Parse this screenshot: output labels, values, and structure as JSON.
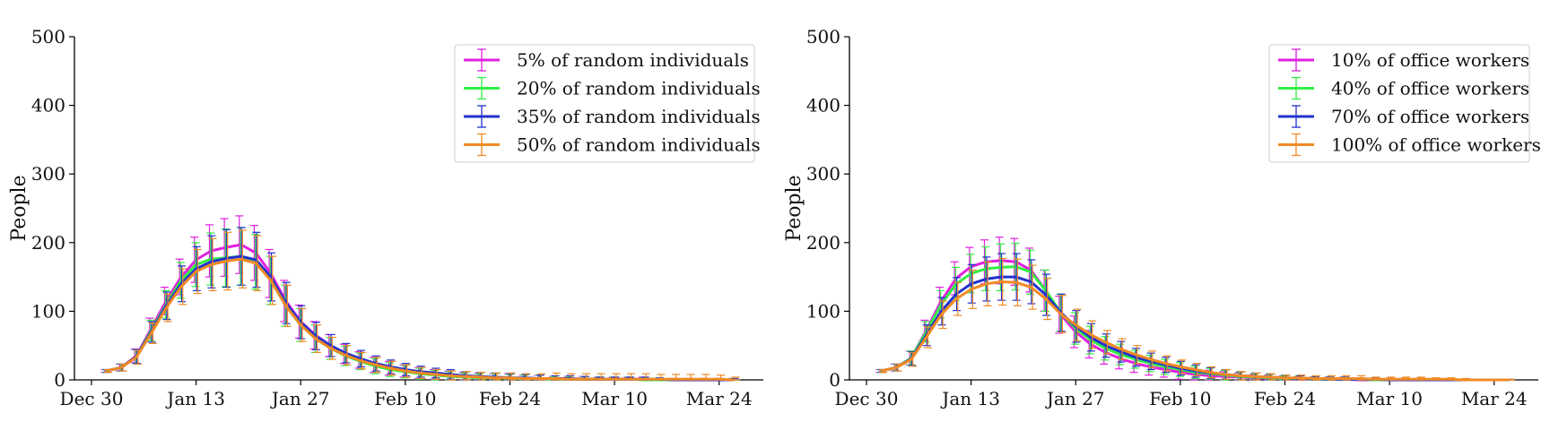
{
  "chart_data": [
    {
      "type": "line",
      "title": "",
      "xlabel": "",
      "ylabel": "People",
      "ylim": [
        0,
        500
      ],
      "yticks": [
        0,
        100,
        200,
        300,
        400,
        500
      ],
      "xticks": [
        "Dec 30",
        "Jan 13",
        "Jan 27",
        "Feb 10",
        "Feb 24",
        "Mar 10",
        "Mar 24"
      ],
      "xrange": [
        "Jan 1",
        "Mar 26"
      ],
      "legend_position": "top-right",
      "error_bars": true,
      "x": [
        "Jan 1",
        "Jan 3",
        "Jan 5",
        "Jan 7",
        "Jan 9",
        "Jan 11",
        "Jan 13",
        "Jan 15",
        "Jan 17",
        "Jan 19",
        "Jan 21",
        "Jan 23",
        "Jan 25",
        "Jan 27",
        "Jan 29",
        "Jan 31",
        "Feb 2",
        "Feb 4",
        "Feb 6",
        "Feb 8",
        "Feb 10",
        "Feb 12",
        "Feb 14",
        "Feb 16",
        "Feb 18",
        "Feb 20",
        "Feb 22",
        "Feb 24",
        "Feb 26",
        "Feb 28",
        "Mar 2",
        "Mar 4",
        "Mar 6",
        "Mar 8",
        "Mar 10",
        "Mar 12",
        "Mar 14",
        "Mar 16",
        "Mar 18",
        "Mar 20",
        "Mar 22",
        "Mar 24",
        "Mar 26"
      ],
      "series": [
        {
          "name": "5% of random individuals",
          "color": "#e020e0",
          "values": [
            13,
            18,
            35,
            75,
            115,
            150,
            175,
            188,
            193,
            197,
            185,
            155,
            115,
            85,
            65,
            50,
            38,
            29,
            22,
            17,
            13,
            10,
            8,
            6,
            5,
            4,
            3,
            3,
            2,
            2,
            1,
            1,
            1,
            1,
            1,
            1,
            1,
            0,
            0,
            0,
            0,
            0,
            0
          ],
          "errors": [
            2,
            5,
            10,
            15,
            20,
            26,
            33,
            38,
            42,
            42,
            40,
            35,
            30,
            24,
            20,
            16,
            14,
            12,
            11,
            10,
            9,
            8,
            7,
            7,
            6,
            6,
            6,
            6,
            5,
            5,
            4,
            4,
            4,
            3,
            3,
            3,
            3,
            2,
            2,
            2,
            2,
            2,
            2
          ]
        },
        {
          "name": "20% of random individuals",
          "color": "#33ee44",
          "values": [
            13,
            18,
            34,
            72,
            110,
            145,
            168,
            176,
            178,
            180,
            172,
            145,
            108,
            80,
            60,
            46,
            35,
            27,
            20,
            15,
            12,
            9,
            7,
            5,
            4,
            3,
            3,
            2,
            2,
            2,
            1,
            1,
            1,
            1,
            1,
            1,
            0,
            0,
            0,
            0,
            0,
            0,
            0
          ],
          "errors": [
            2,
            5,
            10,
            15,
            20,
            26,
            32,
            38,
            42,
            42,
            40,
            35,
            30,
            24,
            20,
            16,
            14,
            12,
            11,
            10,
            9,
            8,
            7,
            7,
            6,
            6,
            6,
            6,
            5,
            5,
            4,
            4,
            4,
            3,
            3,
            3,
            3,
            2,
            2,
            2,
            2,
            2,
            2
          ]
        },
        {
          "name": "35% of random individuals",
          "color": "#2233cc",
          "values": [
            13,
            18,
            34,
            70,
            108,
            140,
            162,
            172,
            177,
            180,
            175,
            150,
            112,
            84,
            64,
            50,
            39,
            31,
            24,
            19,
            15,
            12,
            10,
            8,
            6,
            5,
            4,
            3,
            3,
            2,
            2,
            2,
            1,
            1,
            1,
            1,
            1,
            1,
            0,
            0,
            0,
            0,
            0
          ],
          "errors": [
            2,
            5,
            10,
            15,
            20,
            26,
            32,
            38,
            42,
            42,
            40,
            35,
            30,
            24,
            20,
            16,
            14,
            12,
            11,
            10,
            9,
            8,
            7,
            7,
            6,
            6,
            6,
            6,
            5,
            5,
            4,
            4,
            4,
            3,
            3,
            3,
            3,
            2,
            2,
            2,
            2,
            2,
            2
          ]
        },
        {
          "name": "50% of random individuals",
          "color": "#f08a24",
          "values": [
            13,
            18,
            33,
            68,
            105,
            136,
            158,
            168,
            173,
            176,
            170,
            145,
            108,
            80,
            60,
            46,
            36,
            28,
            22,
            17,
            13,
            10,
            8,
            6,
            5,
            4,
            3,
            3,
            2,
            2,
            2,
            1,
            1,
            1,
            1,
            1,
            1,
            1,
            1,
            1,
            1,
            1,
            0
          ],
          "errors": [
            2,
            5,
            10,
            15,
            20,
            26,
            32,
            38,
            42,
            42,
            40,
            35,
            30,
            24,
            20,
            16,
            14,
            12,
            11,
            10,
            9,
            8,
            7,
            7,
            7,
            7,
            7,
            7,
            7,
            7,
            8,
            8,
            8,
            8,
            8,
            8,
            8,
            7,
            7,
            7,
            7,
            6,
            4
          ]
        }
      ]
    },
    {
      "type": "line",
      "title": "",
      "xlabel": "",
      "ylabel": "People",
      "ylim": [
        0,
        500
      ],
      "yticks": [
        0,
        100,
        200,
        300,
        400,
        500
      ],
      "xticks": [
        "Dec 30",
        "Jan 13",
        "Jan 27",
        "Feb 10",
        "Feb 24",
        "Mar 10",
        "Mar 24"
      ],
      "xrange": [
        "Jan 1",
        "Mar 26"
      ],
      "legend_position": "top-right",
      "error_bars": true,
      "x": [
        "Jan 1",
        "Jan 3",
        "Jan 5",
        "Jan 7",
        "Jan 9",
        "Jan 11",
        "Jan 13",
        "Jan 15",
        "Jan 17",
        "Jan 19",
        "Jan 21",
        "Jan 23",
        "Jan 25",
        "Jan 27",
        "Jan 29",
        "Jan 31",
        "Feb 2",
        "Feb 4",
        "Feb 6",
        "Feb 8",
        "Feb 10",
        "Feb 12",
        "Feb 14",
        "Feb 16",
        "Feb 18",
        "Feb 20",
        "Feb 22",
        "Feb 24",
        "Feb 26",
        "Feb 28",
        "Mar 2",
        "Mar 4",
        "Mar 6",
        "Mar 8",
        "Mar 10",
        "Mar 12",
        "Mar 14",
        "Mar 16",
        "Mar 18",
        "Mar 20",
        "Mar 22",
        "Mar 24",
        "Mar 26"
      ],
      "series": [
        {
          "name": "10% of office workers",
          "color": "#e020e0",
          "values": [
            13,
            18,
            32,
            72,
            115,
            148,
            165,
            172,
            174,
            172,
            160,
            130,
            95,
            70,
            52,
            40,
            31,
            24,
            19,
            15,
            11,
            8,
            6,
            5,
            4,
            3,
            2,
            2,
            1,
            1,
            1,
            1,
            0,
            0,
            0,
            0,
            0,
            0,
            0,
            0,
            0,
            0,
            0
          ],
          "errors": [
            2,
            5,
            10,
            15,
            20,
            24,
            28,
            32,
            34,
            34,
            32,
            30,
            27,
            23,
            20,
            17,
            15,
            13,
            12,
            11,
            10,
            9,
            8,
            7,
            6,
            5,
            5,
            4,
            4,
            3,
            3,
            3,
            2,
            2,
            2,
            2,
            2,
            1,
            1,
            1,
            1,
            1,
            1
          ]
        },
        {
          "name": "40% of office workers",
          "color": "#33ee44",
          "values": [
            13,
            18,
            32,
            70,
            110,
            140,
            155,
            162,
            164,
            165,
            157,
            130,
            98,
            75,
            58,
            46,
            37,
            30,
            24,
            19,
            15,
            11,
            9,
            7,
            5,
            4,
            3,
            2,
            2,
            1,
            1,
            1,
            1,
            0,
            0,
            0,
            0,
            0,
            0,
            0,
            0,
            0,
            0
          ],
          "errors": [
            2,
            5,
            10,
            15,
            20,
            24,
            28,
            32,
            34,
            34,
            32,
            30,
            27,
            23,
            20,
            17,
            15,
            13,
            12,
            11,
            10,
            9,
            8,
            7,
            6,
            5,
            5,
            4,
            4,
            3,
            3,
            3,
            2,
            2,
            2,
            2,
            2,
            1,
            1,
            1,
            1,
            1,
            1
          ]
        },
        {
          "name": "70% of office workers",
          "color": "#2233cc",
          "values": [
            13,
            18,
            31,
            65,
            100,
            125,
            140,
            147,
            150,
            150,
            143,
            124,
            98,
            78,
            62,
            50,
            41,
            33,
            27,
            22,
            17,
            13,
            10,
            8,
            6,
            5,
            4,
            3,
            2,
            2,
            1,
            1,
            1,
            1,
            0,
            0,
            0,
            0,
            0,
            0,
            0,
            0,
            0
          ],
          "errors": [
            2,
            5,
            10,
            15,
            20,
            24,
            28,
            32,
            34,
            34,
            32,
            30,
            27,
            23,
            20,
            17,
            15,
            13,
            12,
            11,
            10,
            9,
            8,
            7,
            6,
            5,
            5,
            4,
            4,
            3,
            3,
            3,
            2,
            2,
            2,
            2,
            2,
            1,
            1,
            1,
            1,
            1,
            1
          ]
        },
        {
          "name": "100% of office workers",
          "color": "#f08a24",
          "values": [
            13,
            18,
            30,
            62,
            95,
            118,
            132,
            140,
            143,
            142,
            135,
            118,
            96,
            80,
            66,
            55,
            45,
            37,
            30,
            24,
            19,
            15,
            11,
            8,
            6,
            5,
            4,
            3,
            3,
            2,
            2,
            2,
            2,
            1,
            1,
            1,
            1,
            1,
            1,
            0,
            0,
            0,
            0
          ],
          "errors": [
            2,
            5,
            10,
            15,
            20,
            24,
            28,
            32,
            34,
            34,
            32,
            30,
            27,
            23,
            20,
            17,
            15,
            13,
            12,
            11,
            10,
            9,
            8,
            7,
            6,
            5,
            5,
            4,
            4,
            4,
            4,
            4,
            4,
            3,
            3,
            3,
            3,
            2,
            2,
            2,
            1,
            1,
            1
          ]
        }
      ]
    }
  ]
}
